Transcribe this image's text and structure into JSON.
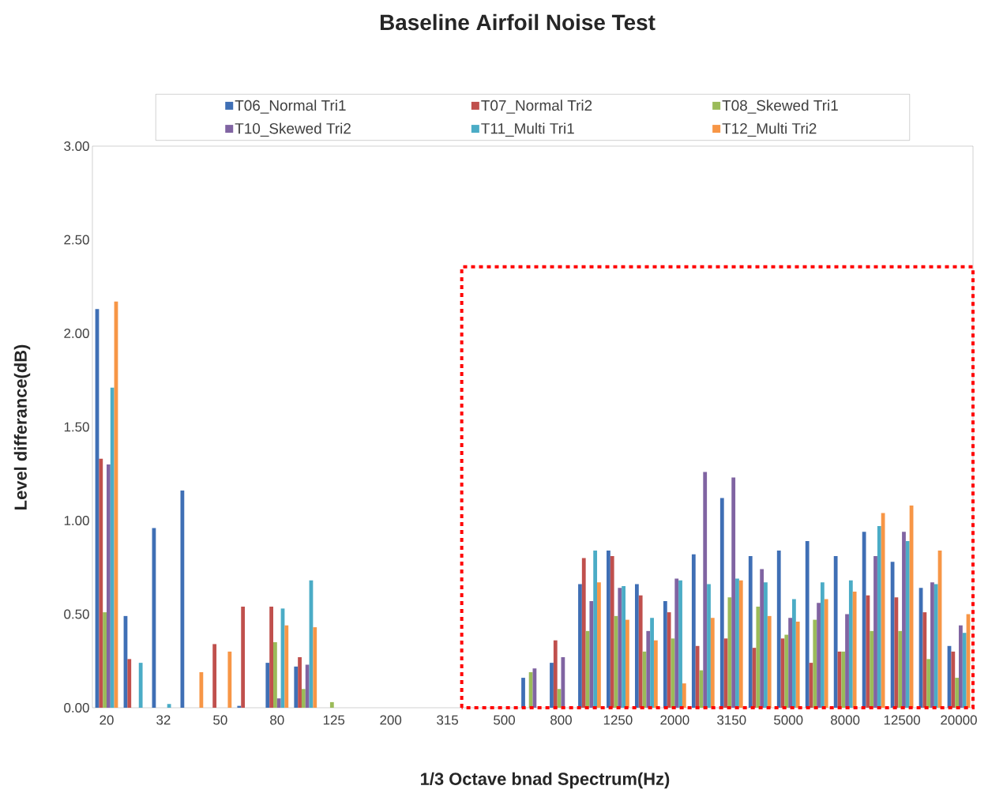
{
  "chart_data": {
    "type": "bar",
    "title": "Baseline Airfoil Noise Test",
    "xlabel": "1/3 Octave bnad Spectrum(Hz)",
    "ylabel": "Level differance(dB)",
    "categories": [
      "20",
      null,
      "32",
      null,
      "50",
      null,
      "80",
      null,
      "125",
      null,
      "200",
      null,
      "315",
      null,
      "500",
      null,
      "800",
      null,
      "1250",
      null,
      "2000",
      null,
      "3150",
      null,
      "5000",
      null,
      "8000",
      null,
      "12500",
      null,
      "20000"
    ],
    "ylim": [
      0,
      3
    ],
    "yticks": [
      {
        "value": 0,
        "label": "0.00"
      },
      {
        "value": 0.5,
        "label": "0.50"
      },
      {
        "value": 1,
        "label": "1.00"
      },
      {
        "value": 1.5,
        "label": "1.50"
      },
      {
        "value": 2,
        "label": "2.00"
      },
      {
        "value": 2.5,
        "label": "2.50"
      },
      {
        "value": 3,
        "label": "3.00"
      }
    ],
    "grid": false,
    "legend": "top",
    "series": [
      {
        "name": "T06_Normal Tri1",
        "color": "#3f6fb5",
        "values": [
          2.13,
          0.49,
          0.96,
          1.16,
          0,
          0.01,
          0.24,
          0.22,
          0,
          0,
          0,
          0,
          0,
          0,
          0,
          0.16,
          0.24,
          0.66,
          0.84,
          0.66,
          0.57,
          0.82,
          1.12,
          0.81,
          0.84,
          0.89,
          0.81,
          0.94,
          0.78,
          0.64,
          0.33
        ]
      },
      {
        "name": "T07_Normal Tri2",
        "color": "#c0504d",
        "values": [
          1.33,
          0.26,
          0,
          0,
          0.34,
          0.54,
          0.54,
          0.27,
          0,
          0,
          0,
          0,
          0,
          0,
          0,
          0,
          0.36,
          0.8,
          0.81,
          0.6,
          0.51,
          0.33,
          0.37,
          0.32,
          0.37,
          0.24,
          0.3,
          0.6,
          0.59,
          0.51,
          0.3
        ]
      },
      {
        "name": "T08_Skewed Tri1",
        "color": "#9bbb59",
        "values": [
          0.51,
          0,
          0,
          0,
          0,
          0,
          0.35,
          0.1,
          0.03,
          0,
          0,
          0,
          0,
          0,
          0,
          0.19,
          0.1,
          0.41,
          0.49,
          0.3,
          0.37,
          0.2,
          0.59,
          0.54,
          0.39,
          0.47,
          0.3,
          0.41,
          0.41,
          0.26,
          0.16
        ]
      },
      {
        "name": "T10_Skewed Tri2",
        "color": "#8064a2",
        "values": [
          1.3,
          0,
          0,
          0,
          0,
          0,
          0.05,
          0.23,
          0,
          0,
          0,
          0,
          0,
          0,
          0,
          0.21,
          0.27,
          0.57,
          0.64,
          0.41,
          0.69,
          1.26,
          1.23,
          0.74,
          0.48,
          0.56,
          0.5,
          0.81,
          0.94,
          0.67,
          0.44
        ]
      },
      {
        "name": "T11_Multi Tri1",
        "color": "#4bacc6",
        "values": [
          1.71,
          0.24,
          0.02,
          0,
          0,
          0,
          0.53,
          0.68,
          0,
          0,
          0,
          0,
          0,
          0,
          0,
          0,
          0,
          0.84,
          0.65,
          0.48,
          0.68,
          0.66,
          0.69,
          0.67,
          0.58,
          0.67,
          0.68,
          0.97,
          0.89,
          0.66,
          0.4
        ]
      },
      {
        "name": "T12_Multi Tri2",
        "color": "#f79646",
        "values": [
          2.17,
          0,
          0,
          0.19,
          0.3,
          0,
          0.44,
          0.43,
          0,
          0,
          0,
          0,
          0,
          0,
          0,
          0,
          0,
          0.67,
          0.47,
          0.36,
          0.13,
          0.48,
          0.68,
          0.49,
          0.46,
          0.58,
          0.62,
          1.04,
          1.08,
          0.84,
          0.5
        ]
      }
    ]
  }
}
